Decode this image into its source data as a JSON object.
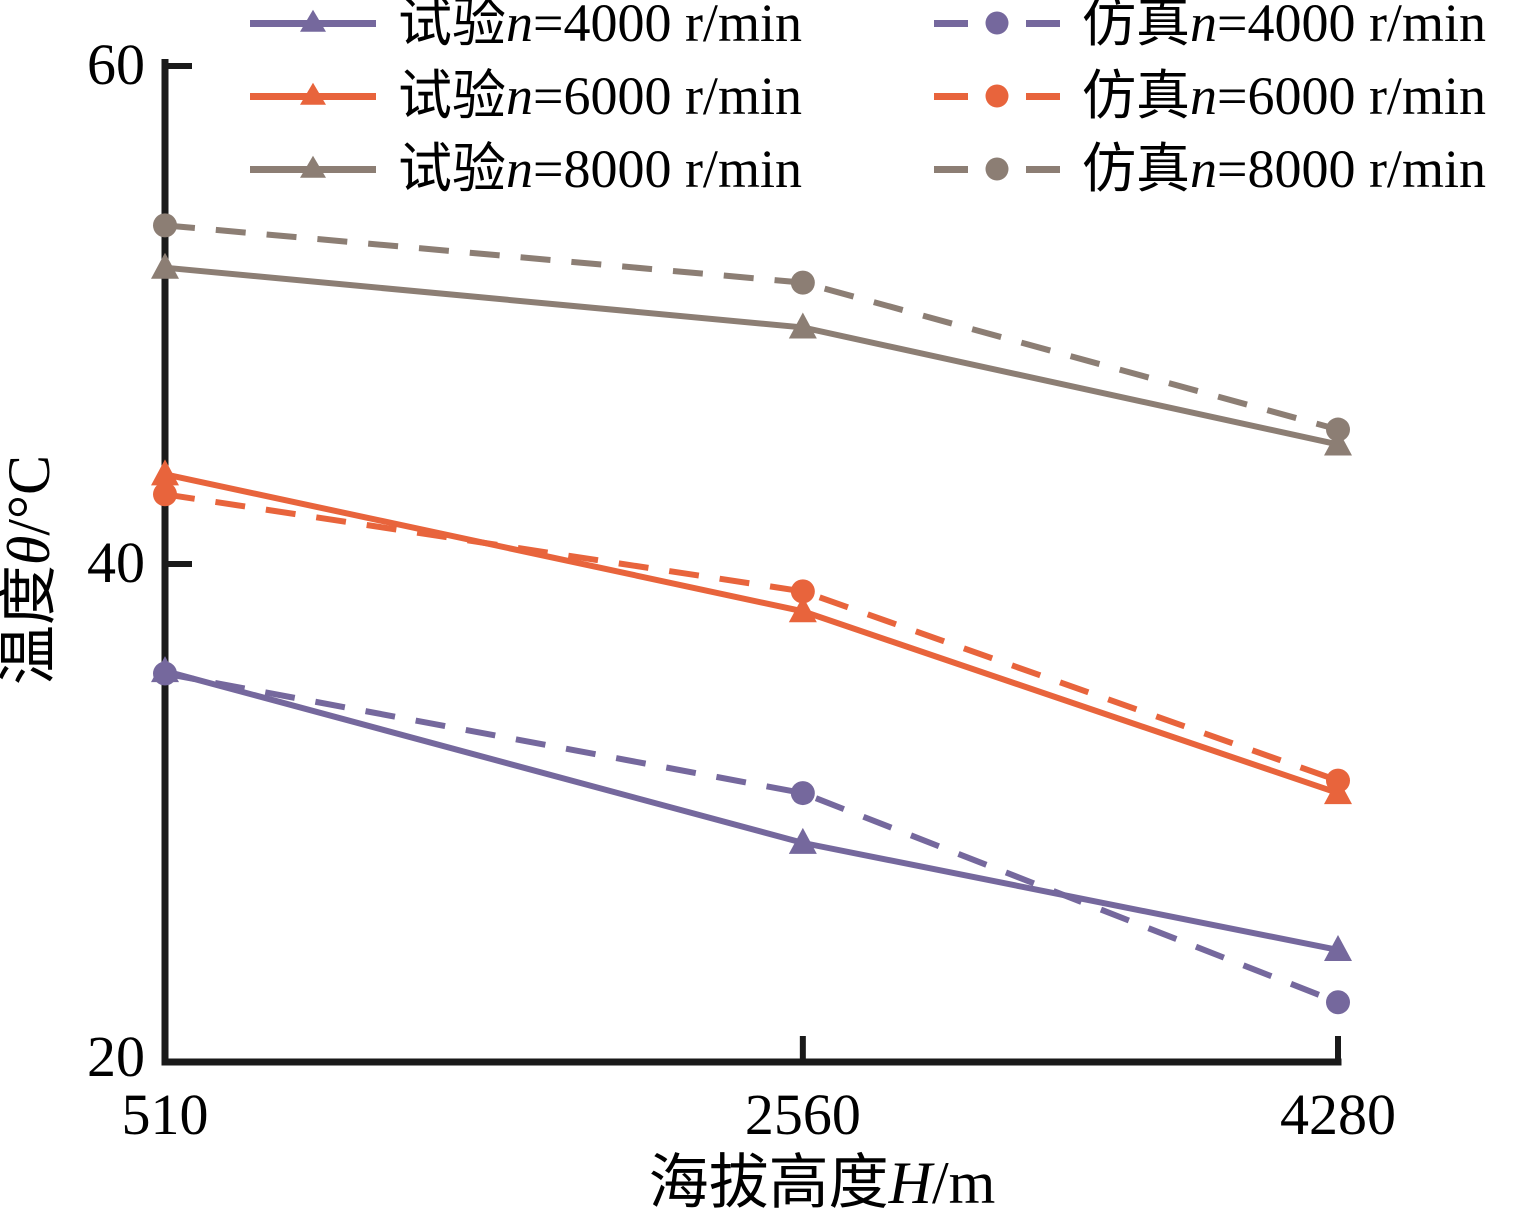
{
  "figure": {
    "background": "#ffffff",
    "axis_color": "#1a1a1a"
  },
  "chart_data": {
    "type": "line",
    "x": [
      510,
      2560,
      4280
    ],
    "x_tick_labels": [
      "510",
      "2560",
      "4280"
    ],
    "xlabel": "海拔高度H/m",
    "xlabel_parts": {
      "prefix": "海拔高度",
      "symbol": "H",
      "suffix": "/m"
    },
    "ylabel": "温度θ/°C",
    "ylabel_parts": {
      "prefix": "温度",
      "symbol": "θ",
      "suffix": "/°C"
    },
    "xlim": [
      510,
      4280
    ],
    "ylim": [
      20,
      60
    ],
    "yticks": [
      20,
      40,
      60
    ],
    "ytick_labels": [
      "20",
      "40",
      "60"
    ],
    "grid": false,
    "legend_position": "top",
    "series": [
      {
        "name": "试验n=4000 r/min",
        "label_parts": {
          "prefix": "试验",
          "symbol": "n",
          "suffix": "=4000 r/min"
        },
        "group": "试验",
        "rpm": 4000,
        "color": "#75689D",
        "line_style": "solid",
        "marker": "triangle",
        "values": [
          35.7,
          28.8,
          24.5
        ]
      },
      {
        "name": "仿真n=4000 r/min",
        "label_parts": {
          "prefix": "仿真",
          "symbol": "n",
          "suffix": "=4000 r/min"
        },
        "group": "仿真",
        "rpm": 4000,
        "color": "#75689D",
        "line_style": "dashed",
        "marker": "circle",
        "values": [
          35.6,
          30.8,
          22.4
        ]
      },
      {
        "name": "试验n=6000 r/min",
        "label_parts": {
          "prefix": "试验",
          "symbol": "n",
          "suffix": "=6000 r/min"
        },
        "group": "试验",
        "rpm": 6000,
        "color": "#E8643C",
        "line_style": "solid",
        "marker": "triangle",
        "values": [
          43.6,
          38.1,
          30.8
        ]
      },
      {
        "name": "仿真n=6000 r/min",
        "label_parts": {
          "prefix": "仿真",
          "symbol": "n",
          "suffix": "=6000 r/min"
        },
        "group": "仿真",
        "rpm": 6000,
        "color": "#E8643C",
        "line_style": "dashed",
        "marker": "circle",
        "values": [
          42.8,
          38.9,
          31.3
        ]
      },
      {
        "name": "试验n=8000 r/min",
        "label_parts": {
          "prefix": "试验",
          "symbol": "n",
          "suffix": "=8000 r/min"
        },
        "group": "试验",
        "rpm": 8000,
        "color": "#8C7E74",
        "line_style": "solid",
        "marker": "triangle",
        "values": [
          51.9,
          49.5,
          44.8
        ]
      },
      {
        "name": "仿真n=8000 r/min",
        "label_parts": {
          "prefix": "仿真",
          "symbol": "n",
          "suffix": "=8000 r/min"
        },
        "group": "仿真",
        "rpm": 8000,
        "color": "#8C7E74",
        "line_style": "dashed",
        "marker": "circle",
        "values": [
          53.6,
          51.3,
          45.4
        ]
      }
    ]
  }
}
